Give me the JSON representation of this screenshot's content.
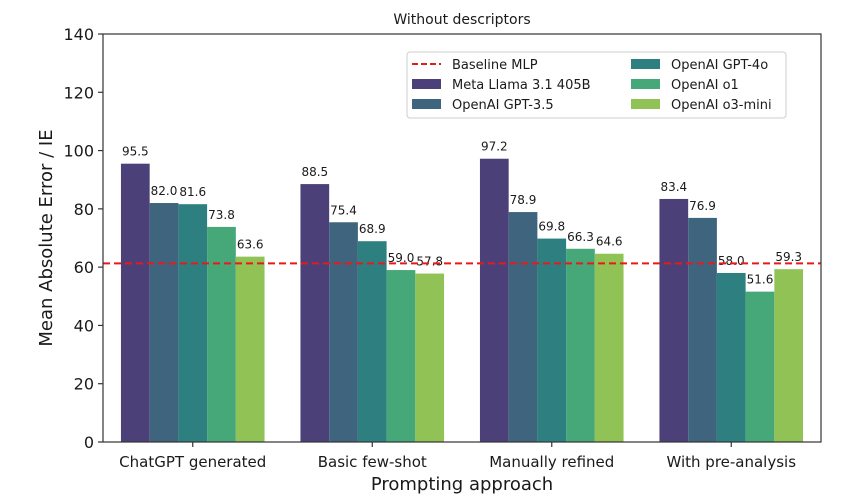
{
  "chart_data": {
    "type": "bar",
    "title": "Without descriptors",
    "xlabel": "Prompting approach",
    "ylabel": "Mean Absolute Error / IE",
    "ylim": [
      0,
      140
    ],
    "yticks": [
      0,
      20,
      40,
      60,
      80,
      100,
      120,
      140
    ],
    "grid": false,
    "legend_position": "top-right",
    "legend_columns": 2,
    "categories": [
      "ChatGPT generated",
      "Basic few-shot",
      "Manually refined",
      "With pre-analysis"
    ],
    "series": [
      {
        "name": "Meta Llama 3.1 405B",
        "color": "#4b4178",
        "values": [
          95.5,
          88.5,
          97.2,
          83.4
        ],
        "labels": [
          "95.5",
          "88.5",
          "97.2",
          "83.4"
        ]
      },
      {
        "name": "OpenAI GPT-3.5",
        "color": "#3e647e",
        "values": [
          82.0,
          75.4,
          78.9,
          76.9
        ],
        "labels": [
          "82.0",
          "75.4",
          "78.9",
          "76.9"
        ]
      },
      {
        "name": "OpenAI GPT-4o",
        "color": "#2d807f",
        "values": [
          81.6,
          68.9,
          69.8,
          58.0
        ],
        "labels": [
          "81.6",
          "68.9",
          "69.8",
          "58.0"
        ]
      },
      {
        "name": "OpenAI o1",
        "color": "#46a878",
        "values": [
          73.8,
          59.0,
          66.3,
          51.6
        ],
        "labels": [
          "73.8",
          "59.0",
          "66.3",
          "51.6"
        ]
      },
      {
        "name": "OpenAI o3-mini",
        "color": "#90c255",
        "values": [
          63.6,
          57.8,
          64.6,
          59.3
        ],
        "labels": [
          "63.6",
          "57.8",
          "64.6",
          "59.3"
        ]
      }
    ],
    "reference_lines": [
      {
        "name": "Baseline MLP",
        "value": 61.3,
        "color": "#e8191a",
        "style": "dashed"
      }
    ],
    "legend_entries": [
      "Baseline MLP",
      "Meta Llama 3.1 405B",
      "OpenAI GPT-3.5",
      "OpenAI GPT-4o",
      "OpenAI o1",
      "OpenAI o3-mini"
    ]
  }
}
